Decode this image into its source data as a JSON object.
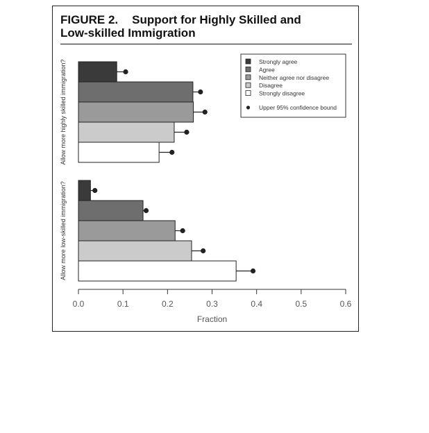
{
  "figure": {
    "label": "FIGURE 2.",
    "title_line1": "Support for Highly Skilled and",
    "title_line2": "Low-skilled Immigration"
  },
  "colors": {
    "strongly_agree": "#3a3a3a",
    "agree": "#6e6e6e",
    "neither": "#9a9a9a",
    "disagree": "#cbcbcb",
    "strongly_disagree": "#ffffff",
    "marker": "#222222"
  },
  "chart_data": {
    "type": "bar",
    "orientation": "horizontal",
    "xlabel": "Fraction",
    "xlim": [
      0,
      0.6
    ],
    "xticks": [
      "0.0",
      "0.1",
      "0.2",
      "0.3",
      "0.4",
      "0.5",
      "0.6"
    ],
    "xtick_values": [
      0,
      0.1,
      0.2,
      0.3,
      0.4,
      0.5,
      0.6
    ],
    "legend_position": "top-right",
    "grid": false,
    "legend": {
      "categories": [
        "Strongly agree",
        "Agree",
        "Neither agree nor disagree",
        "Disagree",
        "Strongly disagree"
      ],
      "marker_label": "Upper 95% confidence bound"
    },
    "groups": [
      {
        "label": "Allow more highly skilled immigration?",
        "values": [
          0.086,
          0.257,
          0.258,
          0.215,
          0.181
        ],
        "upper_95": [
          0.106,
          0.274,
          0.284,
          0.243,
          0.21
        ]
      },
      {
        "label": "Allow more low-skilled immigration?",
        "values": [
          0.027,
          0.145,
          0.217,
          0.254,
          0.354
        ],
        "upper_95": [
          0.037,
          0.152,
          0.234,
          0.28,
          0.392
        ]
      }
    ]
  }
}
